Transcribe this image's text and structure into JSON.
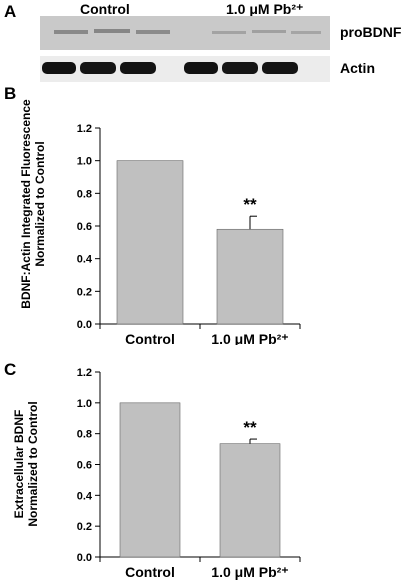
{
  "panels": {
    "a_letter": "A",
    "b_letter": "B",
    "c_letter": "C"
  },
  "blot": {
    "group_labels": [
      "Control",
      "1.0 μM Pb²⁺"
    ],
    "rows": [
      {
        "label": "proBDNF",
        "lanes": 6,
        "gap_after_lane": 3
      },
      {
        "label": "Actin",
        "lanes": 6,
        "gap_after_lane": 3
      }
    ],
    "colors": {
      "probdnf_bg": "#c9c9c9",
      "actin_band": "#111111",
      "actin_bg": "#ececec"
    }
  },
  "chart_data": [
    {
      "type": "bar",
      "panel": "B",
      "categories": [
        "Control",
        "1.0 μM Pb²⁺"
      ],
      "values": [
        1.0,
        0.58
      ],
      "errors": [
        0,
        0.08
      ],
      "annotations": [
        "",
        "**"
      ],
      "ylabel_lines": [
        "BDNF:Actin Integrated Fluorescence",
        "Normalized to Control"
      ],
      "ylim": [
        0,
        1.2
      ],
      "yticks": [
        "0.0",
        "0.2",
        "0.4",
        "0.6",
        "0.8",
        "1.0",
        "1.2"
      ],
      "grid": false,
      "bar_color": "#c0c0c0"
    },
    {
      "type": "bar",
      "panel": "C",
      "categories": [
        "Control",
        "1.0 μM Pb²⁺"
      ],
      "values": [
        1.0,
        0.735
      ],
      "errors": [
        0,
        0.03
      ],
      "annotations": [
        "",
        "**"
      ],
      "ylabel_lines": [
        "Extracellular BDNF",
        "Normalized to Control"
      ],
      "ylim": [
        0,
        1.2
      ],
      "yticks": [
        "0.0",
        "0.2",
        "0.4",
        "0.6",
        "0.8",
        "1.0",
        "1.2"
      ],
      "grid": false,
      "bar_color": "#c0c0c0"
    }
  ]
}
